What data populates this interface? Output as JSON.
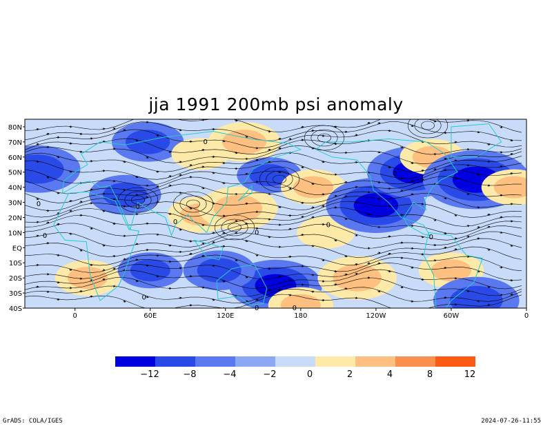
{
  "chart_data": {
    "type": "heatmap",
    "title": "jja 1991 200mb psi anomaly",
    "y_tick_labels": [
      "80N",
      "70N",
      "60N",
      "50N",
      "40N",
      "30N",
      "20N",
      "10N",
      "EQ",
      "10S",
      "20S",
      "30S",
      "40S"
    ],
    "x_tick_labels": [
      "0",
      "60E",
      "120E",
      "180",
      "120W",
      "60W",
      "0"
    ],
    "x_ticks_deg": [
      0,
      60,
      120,
      180,
      240,
      300,
      360
    ],
    "y_ticks_deg": [
      80,
      70,
      60,
      50,
      40,
      30,
      20,
      10,
      0,
      -10,
      -20,
      -30,
      -40
    ],
    "lon_range": [
      -40,
      360
    ],
    "lat_range": [
      -40,
      85
    ],
    "colorbar": {
      "labels": [
        "−12",
        "−8",
        "−4",
        "−2",
        "0",
        "2",
        "4",
        "8",
        "12"
      ],
      "colors": [
        "#0000e0",
        "#2a4ae8",
        "#5a78f0",
        "#8ca8f4",
        "#c8dcfa",
        "#fde9a8",
        "#fdc080",
        "#f9904e",
        "#fb5a14"
      ]
    },
    "contour_labels": [
      "0",
      "0",
      "0",
      "0",
      "0",
      "0",
      "0",
      "0",
      "0",
      "0",
      "0",
      "0"
    ],
    "anomaly_centers": [
      {
        "lon": -30,
        "lat": 52,
        "value": -6
      },
      {
        "lon": 40,
        "lat": 35,
        "value": -4
      },
      {
        "lon": 58,
        "lat": 70,
        "value": -4
      },
      {
        "lon": 100,
        "lat": 62,
        "value": 2
      },
      {
        "lon": 100,
        "lat": 22,
        "value": 3
      },
      {
        "lon": 135,
        "lat": 70,
        "value": 4
      },
      {
        "lon": 130,
        "lat": 26,
        "value": 5
      },
      {
        "lon": 155,
        "lat": 48,
        "value": -3
      },
      {
        "lon": 160,
        "lat": -25,
        "value": -7
      },
      {
        "lon": 115,
        "lat": -15,
        "value": -4
      },
      {
        "lon": 190,
        "lat": 40,
        "value": 3
      },
      {
        "lon": 200,
        "lat": 10,
        "value": 2
      },
      {
        "lon": 225,
        "lat": -20,
        "value": 5
      },
      {
        "lon": 240,
        "lat": 28,
        "value": -8
      },
      {
        "lon": 270,
        "lat": 50,
        "value": -7
      },
      {
        "lon": 285,
        "lat": 60,
        "value": 3
      },
      {
        "lon": 320,
        "lat": 45,
        "value": -9
      },
      {
        "lon": 350,
        "lat": 40,
        "value": 3
      },
      {
        "lon": 300,
        "lat": -15,
        "value": 3
      },
      {
        "lon": 320,
        "lat": -35,
        "value": -6
      },
      {
        "lon": 10,
        "lat": -20,
        "value": 3
      },
      {
        "lon": 60,
        "lat": -15,
        "value": -3
      },
      {
        "lon": 180,
        "lat": -38,
        "value": 3
      }
    ]
  },
  "footer": {
    "left": "GrADS: COLA/IGES",
    "right": "2024-07-26-11:55"
  },
  "colors": {
    "coastline": "#22cccc",
    "streamline": "#000000"
  }
}
